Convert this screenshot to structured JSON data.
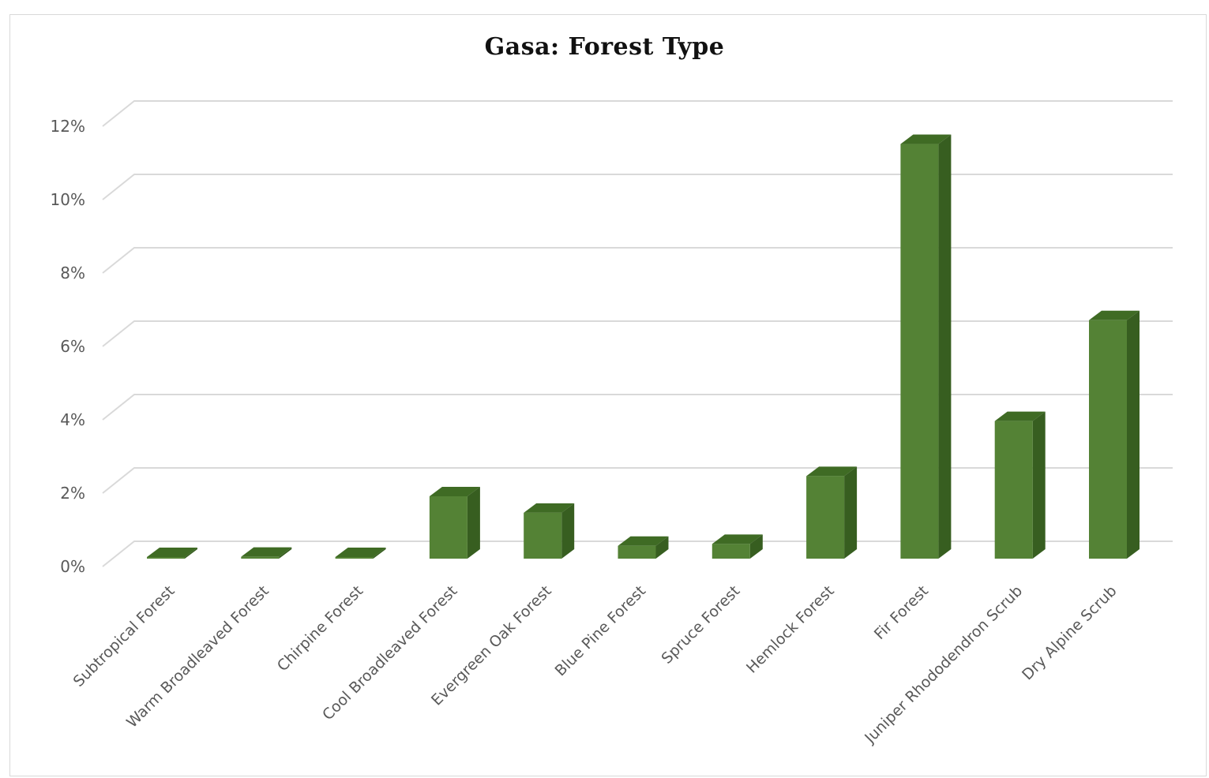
{
  "chart_data": {
    "type": "bar",
    "title": "Gasa: Forest Type",
    "xlabel": "",
    "ylabel": "",
    "categories": [
      "Subtropical Forest",
      "Warm Broadleaved Forest",
      "Chirpine Forest",
      "Cool Broadleaved Forest",
      "Evergreen Oak Forest",
      "Blue Pine Forest",
      "Spruce Forest",
      "Hemlock Forest",
      "Fir Forest",
      "Juniper Rhododendron Scrub",
      "Dry Alpine Scrub"
    ],
    "values": [
      0.03,
      0.05,
      0.03,
      1.7,
      1.25,
      0.35,
      0.4,
      2.25,
      11.3,
      3.75,
      6.5
    ],
    "value_unit": "%",
    "ylim": [
      0,
      12
    ],
    "yticks": [
      "0%",
      "2%",
      "4%",
      "6%",
      "8%",
      "10%",
      "12%"
    ],
    "grid": true,
    "legend": "none",
    "bar_color": "#548235",
    "bar_top_color": "#3f6b24",
    "bar_side_color": "#375e20"
  }
}
